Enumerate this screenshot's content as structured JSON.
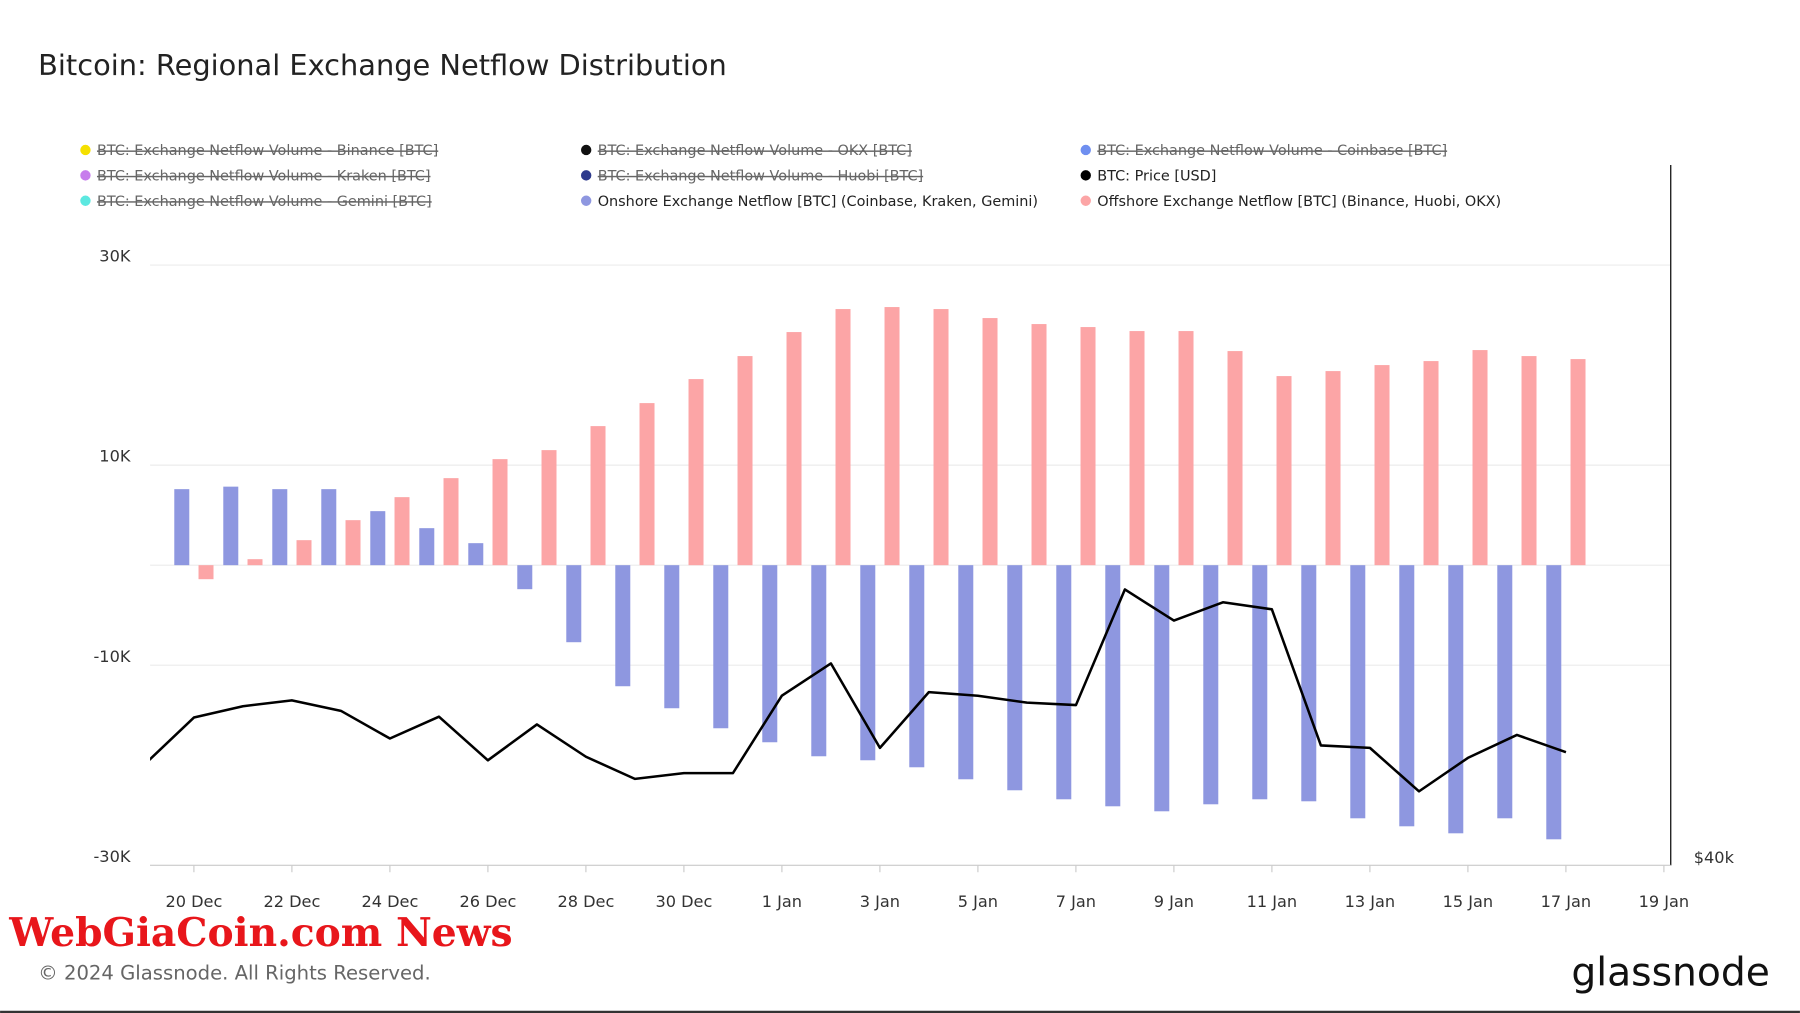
{
  "chart_data": {
    "type": "bar",
    "title": "Bitcoin: Regional Exchange Netflow Distribution",
    "copyright": "© 2024 Glassnode. All Rights Reserved.",
    "brand": "glassnode",
    "watermark": "WebGiaCoin.com News",
    "categories": [
      null,
      "20 Dec",
      null,
      "22 Dec",
      null,
      "24 Dec",
      null,
      "26 Dec",
      null,
      "28 Dec",
      null,
      "30 Dec",
      null,
      "1 Jan",
      null,
      "3 Jan",
      null,
      "5 Jan",
      null,
      "7 Jan",
      null,
      "9 Jan",
      null,
      "11 Jan",
      null,
      "13 Jan",
      null,
      "15 Jan",
      null,
      "17 Jan",
      null,
      "19 Jan"
    ],
    "ylim": [
      -30000,
      40000
    ],
    "yticks": [
      {
        "value": -30000,
        "label": "-30K"
      },
      {
        "value": -10000,
        "label": "-10K"
      },
      {
        "value": 10000,
        "label": "10K"
      },
      {
        "value": 30000,
        "label": "30K"
      }
    ],
    "y2lim": [
      40000,
      58000
    ],
    "y2ticks": [
      {
        "value": 40000,
        "label": "$40k"
      }
    ],
    "grid": true,
    "series": [
      {
        "name": "BTC: Exchange Netflow Volume - Binance [BTC]",
        "color": "#f5e000",
        "hidden": true
      },
      {
        "name": "BTC: Exchange Netflow Volume - OKX [BTC]",
        "color": "#111111",
        "hidden": true
      },
      {
        "name": "BTC: Exchange Netflow Volume - Coinbase [BTC]",
        "color": "#6f8ff0",
        "hidden": true
      },
      {
        "name": "BTC: Exchange Netflow Volume - Kraken [BTC]",
        "color": "#c77dec",
        "hidden": true
      },
      {
        "name": "BTC: Exchange Netflow Volume - Huobi [BTC]",
        "color": "#2e3a8c",
        "hidden": true
      },
      {
        "name": "BTC: Price [USD]",
        "color": "#000000",
        "axis": "y2",
        "kind": "line",
        "values": [
          42600,
          43800,
          44090,
          44240,
          43970,
          43260,
          43820,
          42700,
          43620,
          42790,
          42220,
          42370,
          42370,
          44360,
          45190,
          43020,
          44450,
          44360,
          44180,
          44120,
          47090,
          46290,
          46760,
          46580,
          43080,
          43020,
          41900,
          42760,
          43350,
          42910,
          null,
          null
        ]
      },
      {
        "name": "BTC: Exchange Netflow Volume - Gemini [BTC]",
        "color": "#5ce8e0",
        "hidden": true
      },
      {
        "name": "Onshore Exchange Netflow [BTC] (Coinbase, Kraken, Gemini)",
        "color": "#8e97e0",
        "kind": "bar",
        "values": [
          null,
          7600,
          7850,
          7600,
          7600,
          5400,
          3700,
          2200,
          -2400,
          -7700,
          -12100,
          -14300,
          -16300,
          -17700,
          -19100,
          -19500,
          -20200,
          -21400,
          -22500,
          -23400,
          -24100,
          -24600,
          -23900,
          -23400,
          -23600,
          -25300,
          -26100,
          -26800,
          -25300,
          -27400,
          null,
          null
        ]
      },
      {
        "name": "Offshore Exchange Netflow [BTC] (Binance, Huobi, OKX)",
        "color": "#fca5a6",
        "kind": "bar",
        "values": [
          null,
          -1400,
          600,
          2500,
          4500,
          6800,
          8700,
          10600,
          11500,
          13900,
          16200,
          18600,
          20900,
          23300,
          25600,
          25800,
          25600,
          24700,
          24100,
          23800,
          23400,
          23400,
          21400,
          18900,
          19400,
          20000,
          20400,
          21500,
          20900,
          20600,
          null,
          null
        ]
      }
    ]
  }
}
